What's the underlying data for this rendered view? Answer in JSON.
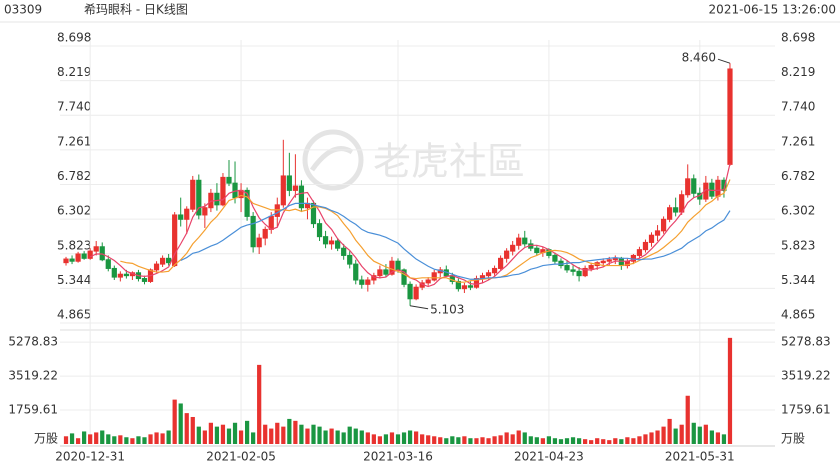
{
  "chart_data": {
    "type": "candlestick",
    "code": "03309",
    "title": "希玛眼科 - 日K线图",
    "timestamp": "2021-06-15 13:26:00",
    "watermark": "老虎社區",
    "up_color": "#e8322f",
    "down_color": "#1a9641",
    "categories": [
      null,
      null,
      null,
      null,
      "2020-12-31",
      null,
      null,
      null,
      null,
      null,
      null,
      null,
      null,
      null,
      null,
      null,
      null,
      null,
      null,
      null,
      null,
      null,
      null,
      null,
      null,
      null,
      null,
      null,
      null,
      "2021-02-05",
      null,
      null,
      null,
      null,
      null,
      null,
      null,
      null,
      null,
      null,
      null,
      null,
      null,
      null,
      null,
      null,
      null,
      null,
      null,
      null,
      null,
      null,
      null,
      null,
      null,
      "2021-03-16",
      null,
      null,
      null,
      null,
      null,
      null,
      null,
      null,
      null,
      null,
      null,
      null,
      null,
      null,
      null,
      null,
      null,
      null,
      null,
      null,
      null,
      null,
      null,
      null,
      "2021-04-23",
      null,
      null,
      null,
      null,
      null,
      null,
      null,
      null,
      null,
      null,
      null,
      null,
      null,
      null,
      null,
      null,
      null,
      null,
      null,
      null,
      null,
      null,
      null,
      null,
      "2021-05-31",
      null,
      null,
      null,
      null,
      null
    ],
    "ohlc": [
      [
        5.7,
        5.78,
        5.66,
        5.75
      ],
      [
        5.75,
        5.8,
        5.68,
        5.72
      ],
      [
        5.72,
        5.85,
        5.7,
        5.82
      ],
      [
        5.82,
        5.86,
        5.74,
        5.76
      ],
      [
        5.76,
        5.9,
        5.74,
        5.86
      ],
      [
        5.86,
        6.0,
        5.8,
        5.92
      ],
      [
        5.92,
        5.98,
        5.72,
        5.74
      ],
      [
        5.74,
        5.8,
        5.58,
        5.62
      ],
      [
        5.62,
        5.66,
        5.46,
        5.5
      ],
      [
        5.5,
        5.58,
        5.44,
        5.54
      ],
      [
        5.54,
        5.6,
        5.48,
        5.52
      ],
      [
        5.52,
        5.58,
        5.46,
        5.56
      ],
      [
        5.56,
        5.6,
        5.44,
        5.48
      ],
      [
        5.48,
        5.52,
        5.4,
        5.44
      ],
      [
        5.44,
        5.62,
        5.42,
        5.6
      ],
      [
        5.6,
        5.72,
        5.56,
        5.68
      ],
      [
        5.68,
        5.8,
        5.64,
        5.76
      ],
      [
        5.76,
        5.82,
        5.66,
        5.7
      ],
      [
        5.66,
        6.4,
        5.64,
        6.36
      ],
      [
        6.36,
        6.6,
        6.2,
        6.3
      ],
      [
        6.3,
        6.48,
        6.1,
        6.44
      ],
      [
        6.44,
        6.9,
        6.4,
        6.84
      ],
      [
        6.84,
        6.92,
        6.3,
        6.36
      ],
      [
        6.36,
        6.52,
        6.18,
        6.46
      ],
      [
        6.46,
        6.72,
        6.4,
        6.66
      ],
      [
        6.66,
        6.8,
        6.42,
        6.5
      ],
      [
        6.5,
        6.94,
        6.48,
        6.88
      ],
      [
        6.88,
        7.12,
        6.76,
        6.8
      ],
      [
        6.8,
        7.1,
        6.52,
        6.6
      ],
      [
        6.6,
        6.8,
        6.4,
        6.7
      ],
      [
        6.7,
        6.74,
        6.28,
        6.34
      ],
      [
        6.34,
        6.4,
        5.84,
        5.92
      ],
      [
        5.92,
        6.1,
        5.82,
        6.04
      ],
      [
        6.04,
        6.2,
        5.94,
        6.16
      ],
      [
        6.16,
        6.4,
        6.1,
        6.34
      ],
      [
        6.34,
        6.6,
        6.2,
        6.5
      ],
      [
        6.5,
        7.4,
        6.46,
        6.9
      ],
      [
        6.9,
        7.22,
        6.62,
        6.7
      ],
      [
        6.7,
        7.2,
        6.6,
        6.76
      ],
      [
        6.76,
        6.84,
        6.4,
        6.46
      ],
      [
        6.46,
        6.6,
        6.3,
        6.52
      ],
      [
        6.52,
        6.56,
        6.18,
        6.24
      ],
      [
        6.24,
        6.3,
        6.0,
        6.06
      ],
      [
        6.06,
        6.14,
        5.9,
        5.96
      ],
      [
        5.96,
        6.06,
        5.88,
        6.0
      ],
      [
        6.0,
        6.04,
        5.86,
        5.9
      ],
      [
        5.9,
        5.96,
        5.74,
        5.8
      ],
      [
        5.8,
        5.86,
        5.62,
        5.68
      ],
      [
        5.68,
        5.74,
        5.4,
        5.46
      ],
      [
        5.46,
        5.52,
        5.34,
        5.4
      ],
      [
        5.4,
        5.5,
        5.3,
        5.46
      ],
      [
        5.46,
        5.56,
        5.4,
        5.52
      ],
      [
        5.52,
        5.66,
        5.48,
        5.6
      ],
      [
        5.6,
        5.68,
        5.5,
        5.54
      ],
      [
        5.54,
        5.78,
        5.52,
        5.72
      ],
      [
        5.72,
        5.76,
        5.56,
        5.6
      ],
      [
        5.6,
        5.62,
        5.36,
        5.4
      ],
      [
        5.4,
        5.44,
        5.103,
        5.2
      ],
      [
        5.2,
        5.4,
        5.18,
        5.36
      ],
      [
        5.36,
        5.46,
        5.32,
        5.42
      ],
      [
        5.42,
        5.5,
        5.38,
        5.46
      ],
      [
        5.46,
        5.6,
        5.44,
        5.56
      ],
      [
        5.56,
        5.64,
        5.5,
        5.6
      ],
      [
        5.6,
        5.66,
        5.5,
        5.52
      ],
      [
        5.52,
        5.56,
        5.4,
        5.44
      ],
      [
        5.44,
        5.48,
        5.3,
        5.34
      ],
      [
        5.34,
        5.42,
        5.28,
        5.38
      ],
      [
        5.38,
        5.44,
        5.32,
        5.36
      ],
      [
        5.36,
        5.52,
        5.34,
        5.48
      ],
      [
        5.48,
        5.56,
        5.42,
        5.52
      ],
      [
        5.52,
        5.6,
        5.46,
        5.56
      ],
      [
        5.56,
        5.66,
        5.52,
        5.62
      ],
      [
        5.62,
        5.8,
        5.6,
        5.76
      ],
      [
        5.76,
        5.9,
        5.7,
        5.86
      ],
      [
        5.86,
        6.0,
        5.8,
        5.94
      ],
      [
        5.94,
        6.1,
        5.88,
        6.04
      ],
      [
        6.04,
        6.14,
        5.92,
        5.96
      ],
      [
        5.96,
        6.02,
        5.86,
        5.9
      ],
      [
        5.9,
        5.94,
        5.8,
        5.84
      ],
      [
        5.84,
        5.92,
        5.78,
        5.88
      ],
      [
        5.88,
        5.9,
        5.76,
        5.8
      ],
      [
        5.8,
        5.84,
        5.68,
        5.72
      ],
      [
        5.72,
        5.76,
        5.62,
        5.66
      ],
      [
        5.66,
        5.72,
        5.56,
        5.6
      ],
      [
        5.6,
        5.66,
        5.52,
        5.58
      ],
      [
        5.58,
        5.64,
        5.44,
        5.52
      ],
      [
        5.52,
        5.66,
        5.5,
        5.62
      ],
      [
        5.62,
        5.7,
        5.58,
        5.66
      ],
      [
        5.66,
        5.72,
        5.6,
        5.7
      ],
      [
        5.7,
        5.76,
        5.64,
        5.72
      ],
      [
        5.72,
        5.78,
        5.66,
        5.74
      ],
      [
        5.74,
        5.8,
        5.68,
        5.76
      ],
      [
        5.76,
        5.78,
        5.6,
        5.66
      ],
      [
        5.66,
        5.76,
        5.62,
        5.72
      ],
      [
        5.72,
        5.82,
        5.68,
        5.8
      ],
      [
        5.8,
        5.92,
        5.76,
        5.88
      ],
      [
        5.88,
        6.02,
        5.84,
        5.98
      ],
      [
        5.98,
        6.12,
        5.92,
        6.08
      ],
      [
        6.08,
        6.22,
        6.0,
        6.14
      ],
      [
        6.14,
        6.34,
        6.1,
        6.3
      ],
      [
        6.3,
        6.5,
        6.26,
        6.46
      ],
      [
        6.46,
        6.6,
        6.34,
        6.4
      ],
      [
        6.4,
        6.7,
        6.36,
        6.64
      ],
      [
        6.64,
        7.06,
        6.6,
        6.86
      ],
      [
        6.86,
        6.92,
        6.6,
        6.66
      ],
      [
        6.66,
        6.74,
        6.5,
        6.58
      ],
      [
        6.58,
        6.9,
        6.54,
        6.8
      ],
      [
        6.8,
        6.86,
        6.58,
        6.62
      ],
      [
        6.62,
        6.9,
        6.56,
        6.84
      ],
      [
        6.84,
        6.88,
        6.6,
        6.7
      ],
      [
        7.06,
        8.46,
        7.04,
        8.38
      ]
    ],
    "ylim": [
      4.865,
      8.698
    ],
    "yticks": [
      4.865,
      5.344,
      5.823,
      6.302,
      6.782,
      7.261,
      {
        "value": 7.74,
        "label": "7.740"
      },
      8.219,
      8.698
    ],
    "annotations": [
      {
        "value": 8.46,
        "label": "8.460"
      },
      5.103
    ],
    "ma": [
      {
        "color": "#e8436a",
        "values": [
          null,
          null,
          null,
          null,
          5.78,
          5.82,
          5.82,
          5.78,
          5.73,
          5.66,
          5.58,
          5.55,
          5.52,
          5.51,
          5.52,
          5.55,
          5.59,
          5.64,
          5.82,
          5.96,
          6.11,
          6.33,
          6.46,
          6.48,
          6.55,
          6.56,
          6.57,
          6.66,
          6.69,
          6.7,
          6.66,
          6.47,
          6.32,
          6.23,
          6.16,
          6.19,
          6.39,
          6.52,
          6.64,
          6.66,
          6.67,
          6.54,
          6.41,
          6.25,
          6.16,
          6.03,
          5.94,
          5.87,
          5.77,
          5.65,
          5.56,
          5.5,
          5.49,
          5.5,
          5.57,
          5.6,
          5.57,
          5.49,
          5.46,
          5.4,
          5.37,
          5.4,
          5.48,
          5.51,
          5.52,
          5.49,
          5.46,
          5.41,
          5.4,
          5.42,
          5.46,
          5.51,
          5.59,
          5.66,
          5.75,
          5.84,
          5.91,
          5.94,
          5.94,
          5.92,
          5.88,
          5.83,
          5.78,
          5.73,
          5.67,
          5.62,
          5.6,
          5.6,
          5.62,
          5.64,
          5.69,
          5.72,
          5.72,
          5.72,
          5.74,
          5.76,
          5.81,
          5.89,
          5.98,
          6.08,
          6.19,
          6.28,
          6.39,
          6.53,
          6.6,
          6.63,
          6.71,
          6.7,
          6.7,
          6.71,
          7.07
        ]
      },
      {
        "color": "#f5a030",
        "values": [
          null,
          null,
          null,
          null,
          null,
          null,
          null,
          null,
          null,
          5.72,
          5.7,
          5.69,
          5.65,
          5.62,
          5.59,
          5.57,
          5.57,
          5.58,
          5.67,
          5.74,
          5.83,
          5.96,
          6.05,
          6.15,
          6.26,
          6.34,
          6.45,
          6.56,
          6.59,
          6.63,
          6.61,
          6.52,
          6.49,
          6.46,
          6.43,
          6.43,
          6.43,
          6.42,
          6.44,
          6.41,
          6.43,
          6.47,
          6.47,
          6.45,
          6.41,
          6.35,
          6.24,
          6.14,
          6.01,
          5.91,
          5.8,
          5.72,
          5.68,
          5.64,
          5.61,
          5.58,
          5.54,
          5.49,
          5.48,
          5.49,
          5.49,
          5.49,
          5.49,
          5.49,
          5.46,
          5.43,
          5.43,
          5.45,
          5.46,
          5.47,
          5.48,
          5.49,
          5.5,
          5.53,
          5.59,
          5.65,
          5.71,
          5.77,
          5.8,
          5.84,
          5.86,
          5.87,
          5.86,
          5.84,
          5.8,
          5.75,
          5.72,
          5.69,
          5.68,
          5.66,
          5.66,
          5.66,
          5.66,
          5.67,
          5.69,
          5.73,
          5.77,
          5.81,
          5.85,
          5.91,
          5.98,
          6.05,
          6.14,
          6.26,
          6.34,
          6.41,
          6.5,
          6.55,
          6.62,
          6.66,
          6.85
        ]
      },
      {
        "color": "#4a8fd8",
        "values": [
          null,
          null,
          null,
          null,
          null,
          null,
          null,
          null,
          null,
          null,
          null,
          null,
          null,
          null,
          null,
          null,
          null,
          null,
          null,
          5.73,
          5.77,
          5.83,
          5.85,
          5.89,
          5.93,
          5.96,
          6.01,
          6.07,
          6.13,
          6.19,
          6.22,
          6.24,
          6.27,
          6.31,
          6.35,
          6.39,
          6.44,
          6.49,
          6.52,
          6.52,
          6.52,
          6.5,
          6.48,
          6.46,
          6.42,
          6.39,
          6.34,
          6.28,
          6.23,
          6.16,
          6.12,
          6.1,
          6.08,
          6.05,
          6.01,
          5.97,
          5.89,
          5.82,
          5.75,
          5.7,
          5.65,
          5.61,
          5.59,
          5.57,
          5.54,
          5.51,
          5.49,
          5.47,
          5.47,
          5.48,
          5.49,
          5.49,
          5.5,
          5.51,
          5.53,
          5.54,
          5.57,
          5.61,
          5.63,
          5.66,
          5.67,
          5.68,
          5.68,
          5.69,
          5.7,
          5.7,
          5.72,
          5.73,
          5.74,
          5.75,
          5.76,
          5.77,
          5.76,
          5.76,
          5.75,
          5.74,
          5.75,
          5.75,
          5.77,
          5.79,
          5.82,
          5.86,
          5.9,
          5.97,
          6.02,
          6.07,
          6.14,
          6.18,
          6.24,
          6.29,
          6.42
        ]
      }
    ],
    "volume": {
      "unit": "万股",
      "ylim": [
        0,
        5700
      ],
      "yticks": [
        1759.61,
        3519.22,
        5278.83
      ],
      "values": [
        400,
        550,
        300,
        650,
        500,
        600,
        700,
        500,
        400,
        450,
        350,
        300,
        400,
        350,
        500,
        600,
        550,
        700,
        2300,
        2100,
        1600,
        1400,
        900,
        700,
        1100,
        900,
        1000,
        800,
        1100,
        700,
        1200,
        600,
        4100,
        1000,
        800,
        1100,
        900,
        1300,
        1200,
        1000,
        800,
        1000,
        900,
        700,
        800,
        700,
        600,
        900,
        800,
        700,
        600,
        500,
        400,
        500,
        600,
        500,
        600,
        700,
        650,
        500,
        450,
        400,
        350,
        300,
        400,
        350,
        400,
        300,
        300,
        350,
        300,
        400,
        450,
        600,
        500,
        700,
        600,
        400,
        350,
        300,
        400,
        300,
        250,
        300,
        350,
        300,
        250,
        200,
        300,
        250,
        200,
        300,
        250,
        350,
        300,
        400,
        500,
        600,
        700,
        900,
        1300,
        800,
        1000,
        2500,
        1100,
        900,
        1000,
        700,
        600,
        500,
        5500
      ]
    }
  }
}
